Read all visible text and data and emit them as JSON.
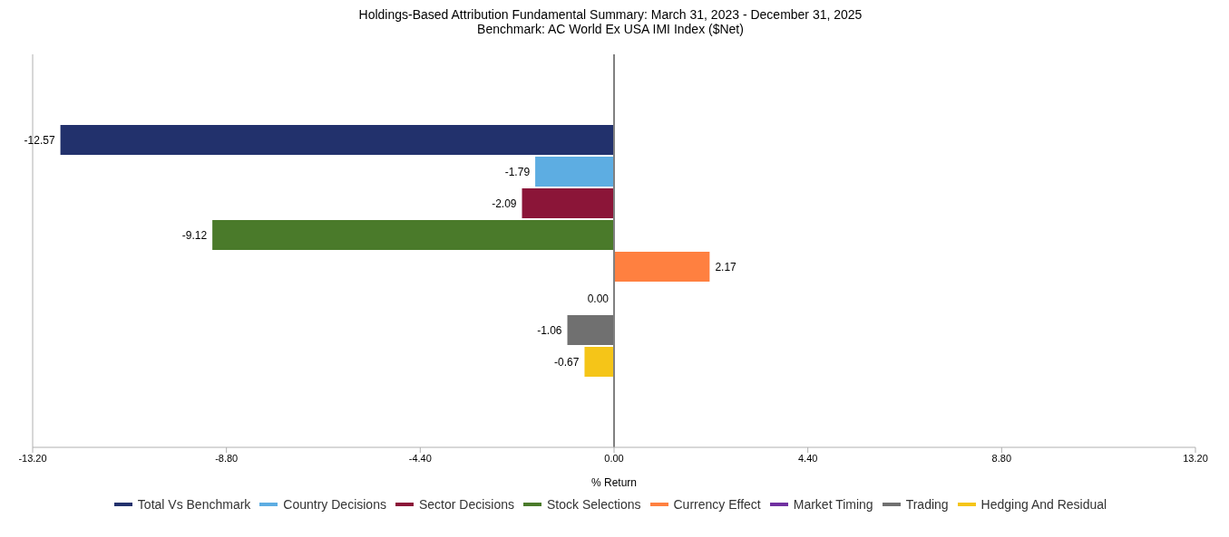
{
  "chart_data": {
    "type": "bar",
    "orientation": "horizontal",
    "title": "Holdings-Based Attribution Fundamental Summary: March 31, 2023 - December 31, 2025",
    "subtitle": "Benchmark: AC World Ex USA IMI Index ($Net)",
    "xlabel": "% Return",
    "categories": [
      null
    ],
    "series": [
      {
        "name": "Total Vs Benchmark",
        "color": "#22316c",
        "values": [
          -12.57
        ],
        "value_labels": [
          "-12.57"
        ]
      },
      {
        "name": "Country Decisions",
        "color": "#5dade2",
        "values": [
          -1.79
        ],
        "value_labels": [
          "-1.79"
        ]
      },
      {
        "name": "Sector Decisions",
        "color": "#8b1538",
        "values": [
          -2.09
        ],
        "value_labels": [
          "-2.09"
        ]
      },
      {
        "name": "Stock Selections",
        "color": "#4a7a2a",
        "values": [
          -9.12
        ],
        "value_labels": [
          "-9.12"
        ]
      },
      {
        "name": "Currency Effect",
        "color": "#ff8040",
        "values": [
          2.17
        ],
        "value_labels": [
          "2.17"
        ]
      },
      {
        "name": "Market Timing",
        "color": "#7030a0",
        "values": [
          0
        ],
        "value_labels": [
          "0.00"
        ]
      },
      {
        "name": "Trading",
        "color": "#707070",
        "values": [
          -1.06
        ],
        "value_labels": [
          "-1.06"
        ]
      },
      {
        "name": "Hedging And Residual",
        "color": "#f5c518",
        "values": [
          -0.67
        ],
        "value_labels": [
          "-0.67"
        ]
      }
    ],
    "xlim": [
      -13.2,
      13.2
    ],
    "xticks": [
      {
        "value": -13.2,
        "label": "-13.20"
      },
      {
        "value": -8.8,
        "label": "-8.80"
      },
      {
        "value": -4.4,
        "label": "-4.40"
      },
      {
        "value": 0,
        "label": "0.00"
      },
      {
        "value": 4.4,
        "label": "4.40"
      },
      {
        "value": 8.8,
        "label": "8.80"
      },
      {
        "value": 13.2,
        "label": "13.20"
      }
    ],
    "ref_lines": [
      {
        "axis": "x",
        "value": 0,
        "color": "#808080"
      }
    ],
    "legend": "bottom"
  }
}
